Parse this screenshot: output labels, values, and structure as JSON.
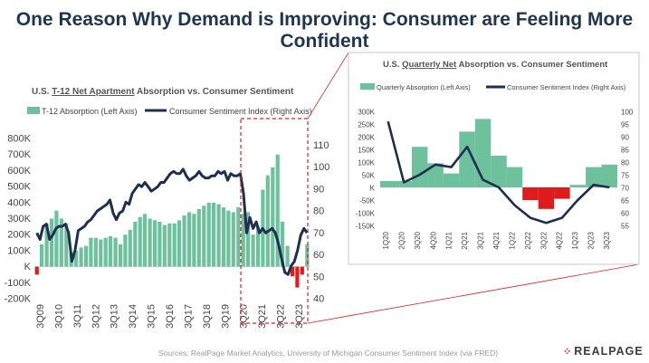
{
  "page_title": "One Reason Why Demand is Improving: Consumer are Feeling More Confident",
  "source": "Sources: RealPage Market Analytics, University of Michigan Consumer Sentiment Index (via FRED)",
  "logo_text": "REALPAGE",
  "colors": {
    "bar_positive": "#6dc19d",
    "bar_negative": "#e01b1b",
    "line": "#1f2f4f",
    "callout": "#e02020",
    "title": "#1f3552"
  },
  "chart_data": [
    {
      "type": "bar",
      "title_parts": [
        "U.S. ",
        "T-12 Net Apartment",
        " Absorption vs. Consumer Sentiment"
      ],
      "legend": [
        "T-12 Absorption (Left Axis)",
        "Consumer Sentiment Index (Right Axis)"
      ],
      "left_ticks": [
        "800K",
        "700K",
        "600K",
        "500K",
        "400K",
        "300K",
        "200K",
        "100K",
        "K",
        "-100K",
        "-200K"
      ],
      "left_tick_values": [
        800,
        700,
        600,
        500,
        400,
        300,
        200,
        100,
        0,
        -100,
        -200
      ],
      "ylim": [
        -200,
        800
      ],
      "right_ticks": [
        "110",
        "100",
        "90",
        "80",
        "70",
        "60",
        "50",
        "40"
      ],
      "right_tick_values": [
        110,
        100,
        90,
        80,
        70,
        60,
        50,
        40
      ],
      "y2lim": [
        40,
        113
      ],
      "x_labels": [
        "3Q09",
        "3Q10",
        "3Q11",
        "3Q12",
        "3Q13",
        "3Q14",
        "3Q15",
        "3Q16",
        "3Q17",
        "3Q18",
        "3Q19",
        "3Q20",
        "3Q21",
        "3Q22",
        "3Q23"
      ],
      "bars": [
        -50,
        140,
        270,
        300,
        350,
        300,
        270,
        90,
        100,
        120,
        130,
        180,
        180,
        170,
        180,
        190,
        180,
        140,
        200,
        230,
        280,
        310,
        330,
        300,
        290,
        280,
        260,
        270,
        270,
        290,
        320,
        340,
        330,
        360,
        380,
        400,
        400,
        390,
        370,
        350,
        340,
        370,
        330,
        340,
        200,
        250,
        480,
        570,
        620,
        700,
        280,
        130,
        -60,
        -130,
        -50,
        140
      ],
      "sentiment": [
        70,
        67,
        73,
        74,
        67,
        69,
        72,
        73,
        73,
        74,
        70,
        57,
        62,
        71,
        72,
        73,
        75,
        76,
        78,
        80,
        81,
        82,
        83,
        85,
        79,
        76,
        79,
        80,
        84,
        83,
        88,
        90,
        92,
        91,
        93,
        91,
        89,
        90,
        91,
        93,
        93,
        95,
        97,
        98,
        97,
        97,
        99,
        96,
        94,
        95,
        96,
        98,
        96,
        95,
        95,
        96,
        96,
        98,
        97,
        98,
        94,
        97,
        96,
        96,
        97,
        88,
        70,
        77,
        72,
        75,
        70,
        72,
        70,
        71,
        72,
        70,
        65,
        58,
        52,
        51,
        55,
        57,
        62,
        69,
        72,
        70
      ]
    },
    {
      "type": "bar",
      "title_parts": [
        "U.S. ",
        "Quarterly Net",
        " Absorption vs. Consumer Sentiment"
      ],
      "legend": [
        "Quarterly Absorption (Left Axis)",
        "Consumer Sentiment Index (Right Axis)"
      ],
      "left_ticks": [
        "300K",
        "250K",
        "200K",
        "150K",
        "100K",
        "50K",
        "K",
        "-50K",
        "-100K",
        "-150K"
      ],
      "left_tick_values": [
        300,
        250,
        200,
        150,
        100,
        50,
        0,
        -50,
        -100,
        -150
      ],
      "ylim": [
        -150,
        300
      ],
      "right_ticks": [
        "100",
        "95",
        "90",
        "85",
        "80",
        "75",
        "70",
        "65",
        "60",
        "55"
      ],
      "right_tick_values": [
        100,
        95,
        90,
        85,
        80,
        75,
        70,
        65,
        60,
        55
      ],
      "y2lim": [
        55,
        100
      ],
      "x_labels": [
        "1Q20",
        "2Q20",
        "3Q20",
        "4Q20",
        "1Q21",
        "2Q21",
        "3Q21",
        "4Q21",
        "1Q22",
        "2Q22",
        "3Q22",
        "4Q22",
        "1Q23",
        "2Q23",
        "3Q23"
      ],
      "bars": [
        25,
        25,
        160,
        95,
        55,
        220,
        270,
        125,
        80,
        -50,
        -85,
        -45,
        10,
        80,
        90
      ],
      "sentiment": [
        96,
        72,
        75,
        79,
        78,
        86,
        73,
        70,
        63,
        58,
        56,
        58,
        65,
        71,
        70
      ]
    }
  ]
}
